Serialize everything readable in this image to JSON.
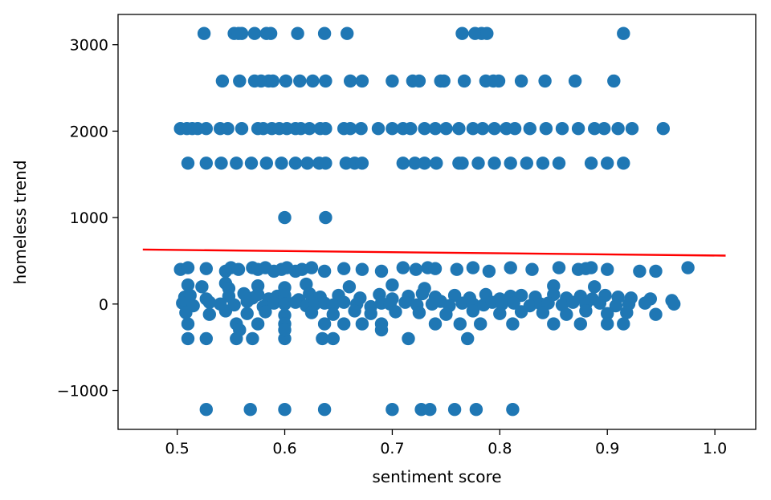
{
  "chart_data": {
    "type": "scatter",
    "title": "",
    "xlabel": "sentiment score",
    "ylabel": "homeless trend",
    "xlim": [
      0.445,
      1.038
    ],
    "ylim": [
      -1450,
      3350
    ],
    "xticks": [
      0.5,
      0.6,
      0.7,
      0.8,
      0.9,
      1.0
    ],
    "xtick_labels": [
      "0.5",
      "0.6",
      "0.7",
      "0.8",
      "0.9",
      "1.0"
    ],
    "yticks": [
      -1000,
      0,
      1000,
      2000,
      3000
    ],
    "ytick_labels": [
      "−1000",
      "0",
      "1000",
      "2000",
      "3000"
    ],
    "grid": false,
    "colors": {
      "points": "#1f77b4",
      "fit_line": "#ff0000"
    },
    "series": [
      {
        "kind": "points",
        "x": [
          0.525,
          0.553,
          0.557,
          0.56,
          0.572,
          0.583,
          0.587,
          0.612,
          0.637,
          0.658,
          0.765,
          0.777,
          0.783,
          0.788,
          0.915,
          0.542,
          0.558,
          0.572,
          0.578,
          0.585,
          0.589,
          0.601,
          0.614,
          0.626,
          0.638,
          0.661,
          0.672,
          0.7,
          0.719,
          0.725,
          0.745,
          0.748,
          0.767,
          0.787,
          0.794,
          0.799,
          0.82,
          0.842,
          0.87,
          0.906,
          0.503,
          0.509,
          0.514,
          0.519,
          0.527,
          0.54,
          0.547,
          0.56,
          0.575,
          0.58,
          0.588,
          0.595,
          0.602,
          0.61,
          0.615,
          0.623,
          0.633,
          0.638,
          0.655,
          0.661,
          0.671,
          0.687,
          0.7,
          0.71,
          0.717,
          0.73,
          0.74,
          0.75,
          0.762,
          0.775,
          0.784,
          0.795,
          0.806,
          0.814,
          0.828,
          0.843,
          0.858,
          0.873,
          0.888,
          0.897,
          0.91,
          0.923,
          0.952,
          0.51,
          0.527,
          0.541,
          0.555,
          0.569,
          0.583,
          0.597,
          0.61,
          0.621,
          0.632,
          0.638,
          0.657,
          0.665,
          0.672,
          0.71,
          0.721,
          0.73,
          0.741,
          0.762,
          0.765,
          0.78,
          0.795,
          0.81,
          0.825,
          0.84,
          0.855,
          0.885,
          0.9,
          0.915,
          0.6,
          0.638,
          0.503,
          0.51,
          0.527,
          0.545,
          0.55,
          0.557,
          0.57,
          0.575,
          0.582,
          0.59,
          0.597,
          0.602,
          0.61,
          0.616,
          0.625,
          0.637,
          0.655,
          0.672,
          0.69,
          0.71,
          0.722,
          0.733,
          0.74,
          0.76,
          0.775,
          0.79,
          0.81,
          0.83,
          0.855,
          0.873,
          0.88,
          0.885,
          0.9,
          0.93,
          0.945,
          0.975,
          0.51,
          0.523,
          0.545,
          0.548,
          0.575,
          0.6,
          0.62,
          0.66,
          0.7,
          0.73,
          0.85,
          0.888,
          0.507,
          0.512,
          0.527,
          0.548,
          0.562,
          0.57,
          0.575,
          0.585,
          0.593,
          0.6,
          0.613,
          0.623,
          0.633,
          0.65,
          0.67,
          0.688,
          0.7,
          0.715,
          0.728,
          0.74,
          0.758,
          0.772,
          0.787,
          0.8,
          0.81,
          0.82,
          0.833,
          0.85,
          0.862,
          0.875,
          0.886,
          0.898,
          0.91,
          0.922,
          0.94,
          0.96,
          0.505,
          0.515,
          0.53,
          0.54,
          0.553,
          0.565,
          0.58,
          0.59,
          0.6,
          0.61,
          0.62,
          0.628,
          0.637,
          0.645,
          0.655,
          0.667,
          0.68,
          0.69,
          0.698,
          0.712,
          0.723,
          0.737,
          0.745,
          0.753,
          0.765,
          0.775,
          0.785,
          0.793,
          0.802,
          0.813,
          0.828,
          0.838,
          0.845,
          0.858,
          0.868,
          0.88,
          0.893,
          0.908,
          0.92,
          0.935,
          0.962,
          0.508,
          0.53,
          0.545,
          0.565,
          0.582,
          0.6,
          0.625,
          0.645,
          0.665,
          0.68,
          0.703,
          0.725,
          0.75,
          0.775,
          0.8,
          0.82,
          0.84,
          0.862,
          0.88,
          0.9,
          0.918,
          0.945,
          0.51,
          0.555,
          0.575,
          0.6,
          0.637,
          0.655,
          0.672,
          0.69,
          0.74,
          0.763,
          0.782,
          0.812,
          0.85,
          0.875,
          0.9,
          0.915,
          0.51,
          0.527,
          0.555,
          0.57,
          0.6,
          0.635,
          0.645,
          0.6,
          0.558,
          0.69,
          0.715,
          0.77,
          0.527,
          0.568,
          0.6,
          0.637,
          0.7,
          0.727,
          0.735,
          0.758,
          0.778,
          0.812
        ],
        "y": [
          3130,
          3130,
          3130,
          3130,
          3130,
          3130,
          3130,
          3130,
          3130,
          3130,
          3130,
          3130,
          3130,
          3130,
          3130,
          2580,
          2580,
          2580,
          2580,
          2580,
          2580,
          2580,
          2580,
          2580,
          2580,
          2580,
          2580,
          2580,
          2580,
          2580,
          2580,
          2580,
          2580,
          2580,
          2580,
          2580,
          2580,
          2580,
          2580,
          2580,
          2030,
          2030,
          2030,
          2030,
          2030,
          2030,
          2030,
          2030,
          2030,
          2030,
          2030,
          2030,
          2030,
          2030,
          2030,
          2030,
          2030,
          2030,
          2030,
          2030,
          2030,
          2030,
          2030,
          2030,
          2030,
          2030,
          2030,
          2030,
          2030,
          2030,
          2030,
          2030,
          2030,
          2030,
          2030,
          2030,
          2030,
          2030,
          2030,
          2030,
          2030,
          2030,
          2030,
          1630,
          1630,
          1630,
          1630,
          1630,
          1630,
          1630,
          1630,
          1630,
          1630,
          1630,
          1630,
          1630,
          1630,
          1630,
          1630,
          1630,
          1630,
          1630,
          1630,
          1630,
          1630,
          1630,
          1630,
          1630,
          1630,
          1630,
          1630,
          1630,
          1000,
          1000,
          400,
          420,
          410,
          380,
          420,
          400,
          420,
          400,
          420,
          380,
          400,
          420,
          380,
          400,
          420,
          380,
          410,
          400,
          380,
          420,
          400,
          420,
          410,
          400,
          420,
          380,
          420,
          400,
          420,
          400,
          410,
          420,
          400,
          380,
          380,
          420,
          220,
          200,
          240,
          180,
          210,
          190,
          230,
          200,
          220,
          180,
          210,
          200,
          80,
          100,
          60,
          90,
          120,
          70,
          110,
          60,
          90,
          100,
          50,
          120,
          80,
          100,
          70,
          110,
          60,
          90,
          120,
          80,
          100,
          70,
          110,
          60,
          90,
          100,
          80,
          110,
          70,
          90,
          60,
          100,
          80,
          70,
          60,
          40,
          10,
          -20,
          20,
          0,
          -10,
          30,
          -30,
          10,
          0,
          20,
          -20,
          0,
          10,
          -10,
          20,
          0,
          -30,
          10,
          0,
          20,
          -10,
          0,
          30,
          -20,
          10,
          0,
          -10,
          20,
          0,
          10,
          -20,
          0,
          10,
          -10,
          20,
          0,
          10,
          -20,
          0,
          10,
          0,
          -100,
          -120,
          -80,
          -110,
          -90,
          -130,
          -100,
          -120,
          -80,
          -110,
          -90,
          -100,
          -120,
          -80,
          -110,
          -90,
          -100,
          -120,
          -80,
          -110,
          -100,
          -120,
          -230,
          -230,
          -230,
          -230,
          -230,
          -230,
          -230,
          -230,
          -230,
          -230,
          -230,
          -230,
          -230,
          -230,
          -230,
          -230,
          -400,
          -400,
          -400,
          -400,
          -400,
          -400,
          -400,
          -300,
          -300,
          -300,
          -400,
          -400,
          -1220,
          -1220,
          -1220,
          -1220,
          -1220,
          -1220,
          -1220,
          -1220,
          -1220,
          -1220
        ]
      },
      {
        "kind": "fit_line",
        "x": [
          0.468,
          1.01
        ],
        "y": [
          630,
          560
        ]
      }
    ]
  }
}
